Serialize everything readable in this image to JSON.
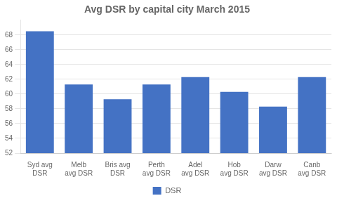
{
  "chart_data": {
    "type": "bar",
    "title": "Avg DSR by capital city March 2015",
    "categories": [
      "Syd avg\nDSR",
      "Melb\navg DSR",
      "Bris avg\nDSR",
      "Perth\navg DSR",
      "Adel\navg DSR",
      "Hob\navg DSR",
      "Darw\navg DSR",
      "Canb\navg DSR"
    ],
    "series": [
      {
        "name": "DSR",
        "color": "#4472C4",
        "values": [
          68.5,
          61.3,
          59.3,
          61.3,
          62.3,
          60.3,
          58.3,
          62.3
        ]
      }
    ],
    "ylim": [
      52,
      70
    ],
    "yticks": [
      52,
      54,
      56,
      58,
      60,
      62,
      64,
      66,
      68
    ],
    "grid": true,
    "legend": "bottom"
  }
}
